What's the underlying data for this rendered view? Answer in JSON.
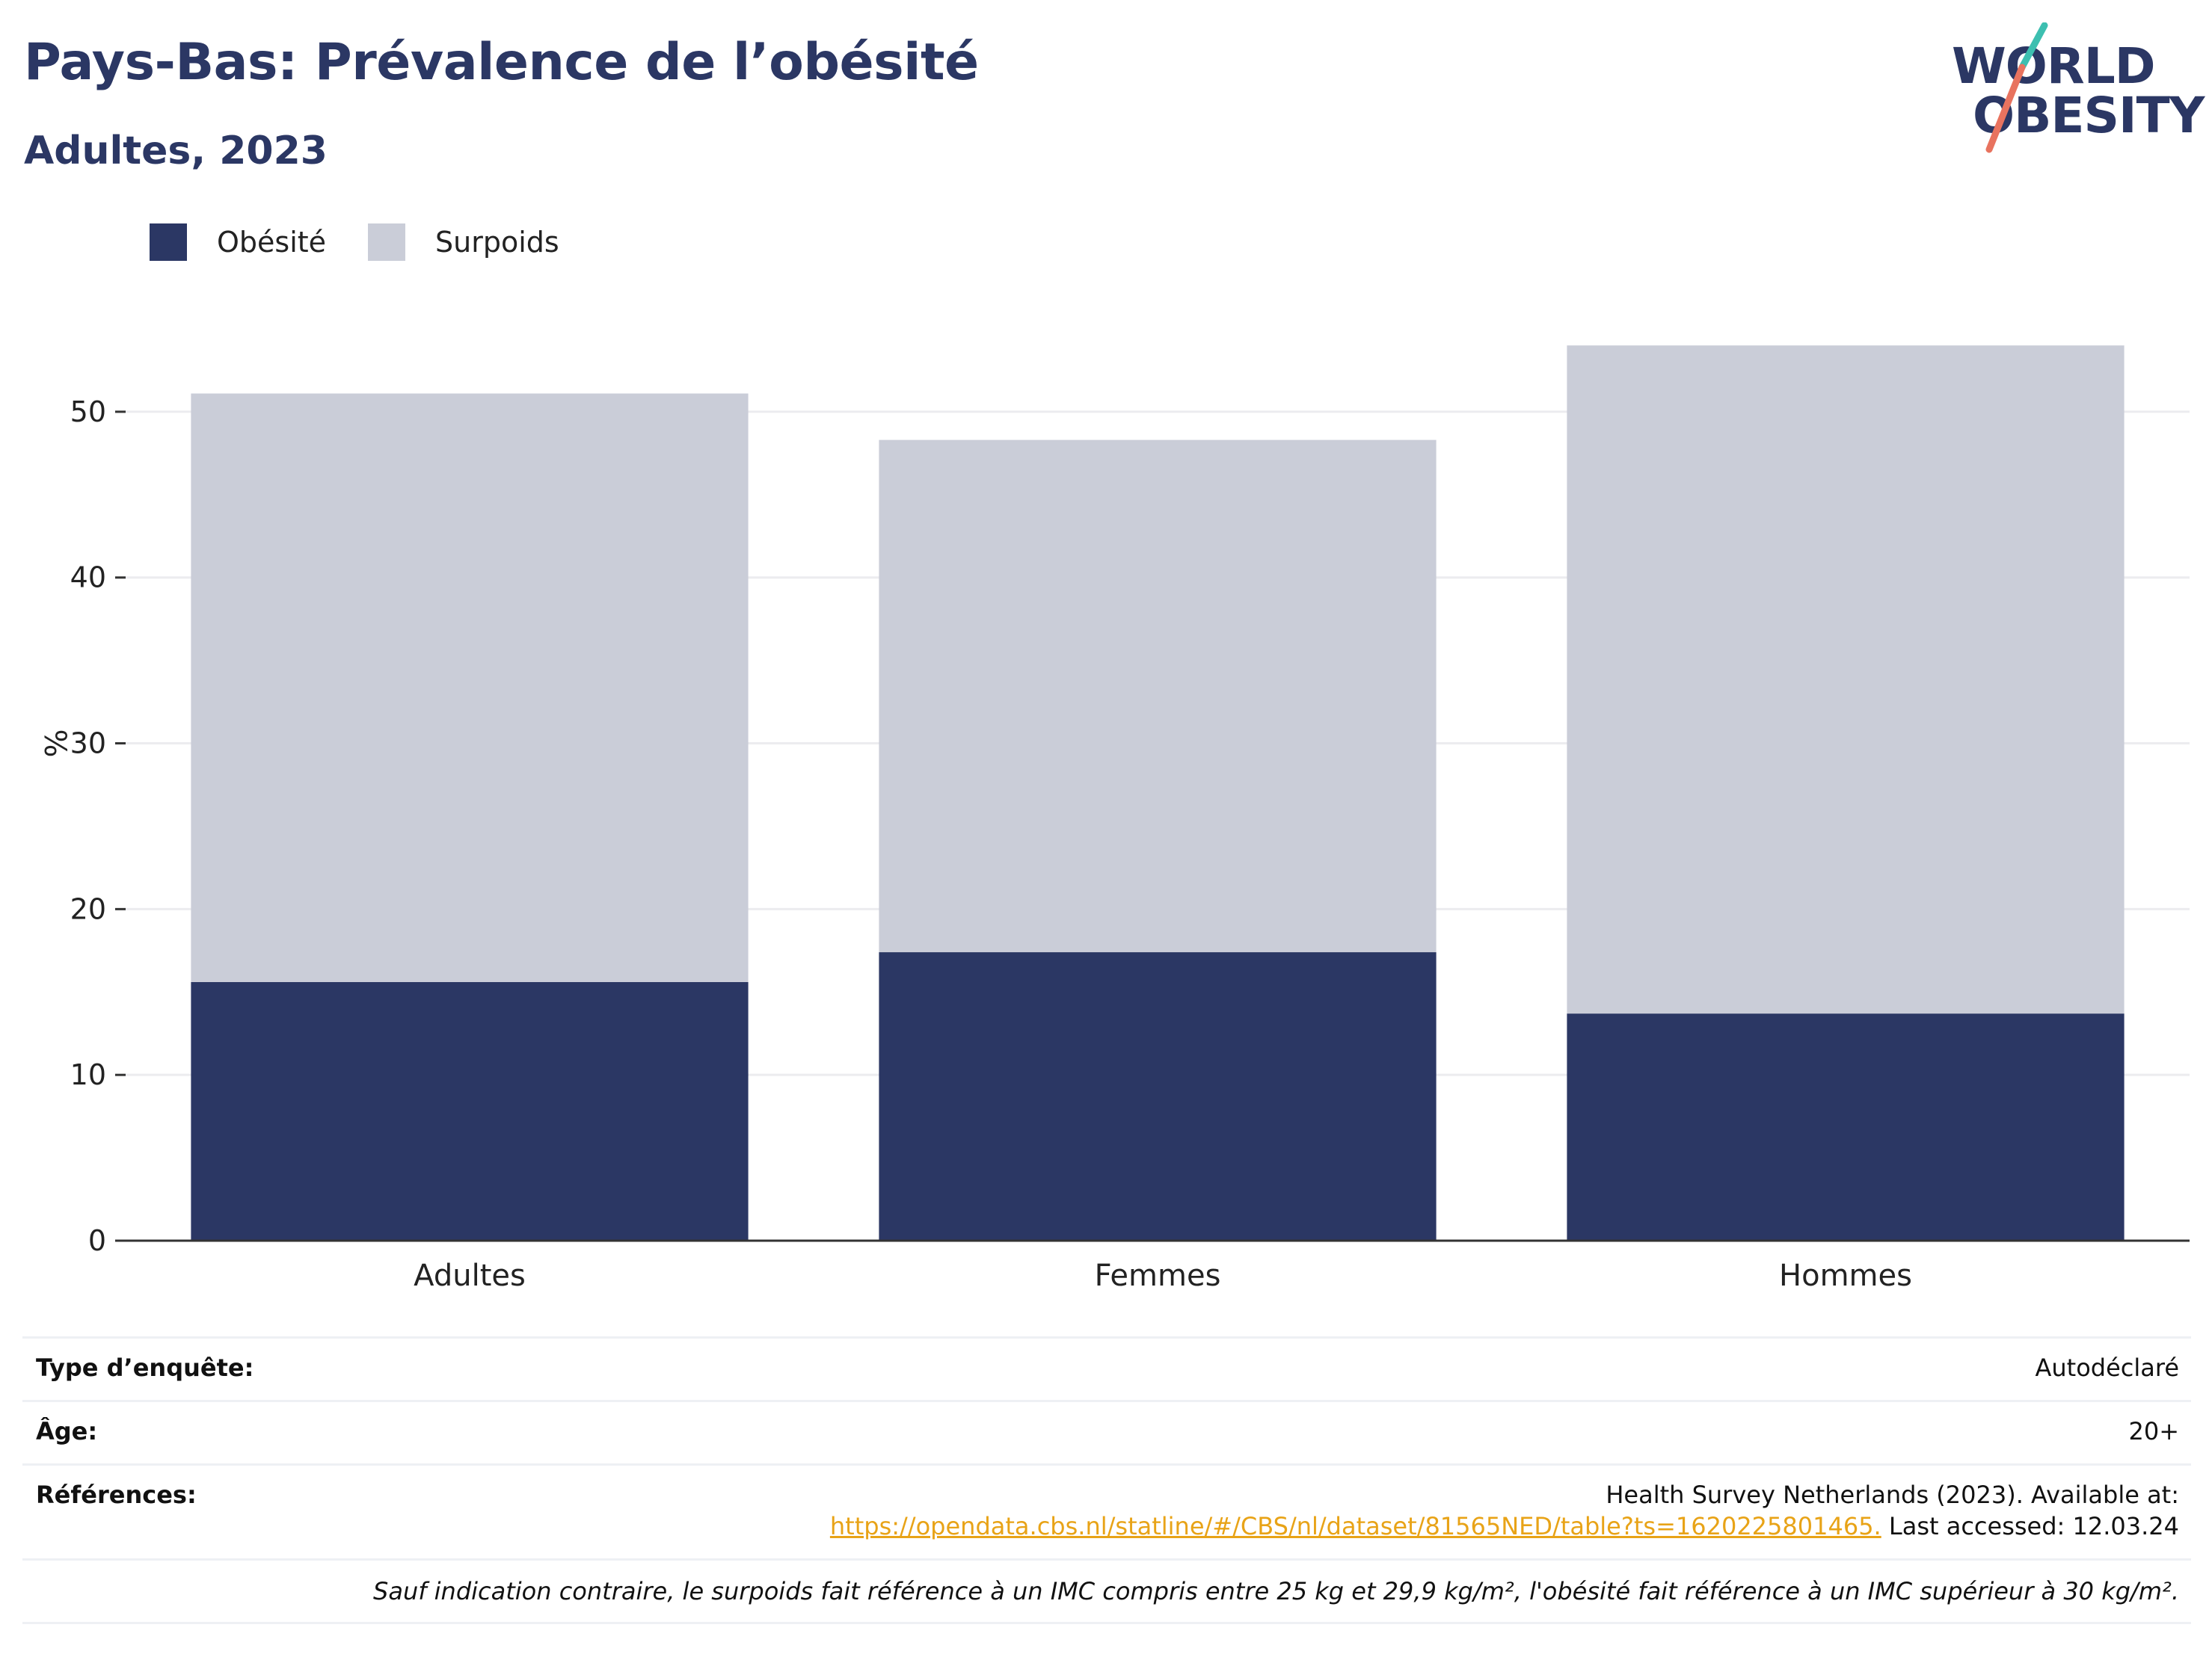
{
  "title": "Pays-Bas: Prévalence de l’obésité",
  "subtitle": "Adultes, 2023",
  "logo": {
    "line1": "WORLD",
    "line2": "OBESITY"
  },
  "colors": {
    "obesity": "#2b3764",
    "overweight": "#cacdd8",
    "title": "#2b3764",
    "link": "#e8a317"
  },
  "chart_data": {
    "type": "bar",
    "stacked": true,
    "categories": [
      "Adultes",
      "Femmes",
      "Hommes"
    ],
    "series": [
      {
        "name": "Obésité",
        "values": [
          15.6,
          17.4,
          13.7
        ],
        "color": "#2b3764"
      },
      {
        "name": "Surpoids",
        "values": [
          35.5,
          30.9,
          40.3
        ],
        "color": "#cacdd8"
      }
    ],
    "ylabel": "%",
    "ylim": [
      0,
      55
    ],
    "yticks": [
      0,
      10,
      20,
      30,
      40,
      50
    ],
    "grid": true,
    "legend": "top-left"
  },
  "info": {
    "survey_label": "Type d’enquête:",
    "survey_value": "Autodéclaré",
    "age_label": "Âge:",
    "age_value": "20+",
    "ref_label": "Références:",
    "ref_line1": "Health Survey Netherlands (2023). Available at:",
    "ref_link": "https://opendata.cbs.nl/statline/#/CBS/nl/dataset/81565NED/table?ts=1620225801465.",
    "ref_suffix": " Last accessed: 12.03.24",
    "note": "Sauf indication contraire, le surpoids fait référence à un IMC compris entre 25 kg et 29,9 kg/m², l'obésité fait référence à un IMC supérieur à 30 kg/m²."
  }
}
